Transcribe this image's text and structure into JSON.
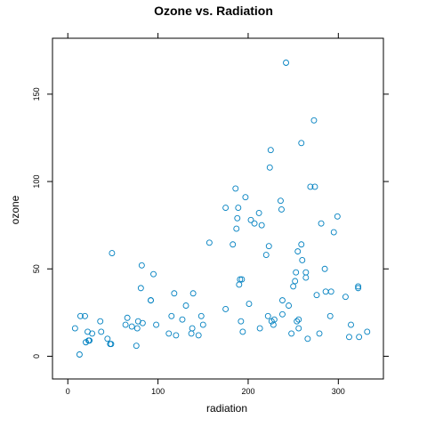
{
  "chart_data": {
    "type": "scatter",
    "title": "Ozone vs. Radiation",
    "xlabel": "radiation",
    "ylabel": "ozone",
    "xlim": [
      -17,
      350
    ],
    "ylim": [
      -13,
      182
    ],
    "xticks": [
      0,
      100,
      200,
      300
    ],
    "yticks": [
      0,
      50,
      100,
      150
    ],
    "grid": false,
    "point_color": "#0080c0",
    "x": [
      8,
      13,
      14,
      19,
      20,
      22,
      23,
      24,
      27,
      36,
      37,
      44,
      47,
      48,
      49,
      64,
      66,
      71,
      76,
      77,
      78,
      81,
      82,
      83,
      92,
      92,
      95,
      98,
      112,
      115,
      118,
      120,
      127,
      131,
      137,
      138,
      139,
      145,
      148,
      150,
      157,
      175,
      175,
      183,
      186,
      187,
      188,
      189,
      190,
      191,
      192,
      193,
      194,
      197,
      201,
      203,
      207,
      212,
      213,
      215,
      220,
      222,
      223,
      224,
      225,
      226,
      228,
      229,
      236,
      237,
      238,
      238,
      242,
      245,
      248,
      250,
      252,
      253,
      254,
      255,
      256,
      256,
      259,
      259,
      260,
      264,
      264,
      266,
      269,
      273,
      274,
      276,
      279,
      281,
      285,
      286,
      291,
      292,
      295,
      299,
      308,
      312,
      314,
      322,
      322,
      323,
      332
    ],
    "y": [
      16,
      1,
      23,
      23,
      8,
      14,
      9,
      9,
      13,
      20,
      14,
      10,
      7,
      7,
      59,
      18,
      22,
      17,
      6,
      16,
      20,
      39,
      52,
      19,
      32,
      32,
      47,
      18,
      13,
      23,
      36,
      12,
      21,
      29,
      13,
      16,
      36,
      12,
      23,
      18,
      65,
      27,
      85,
      64,
      96,
      73,
      79,
      85,
      41,
      44,
      20,
      44,
      14,
      91,
      30,
      78,
      76,
      82,
      16,
      75,
      58,
      23,
      63,
      108,
      118,
      20,
      18,
      21,
      89,
      84,
      32,
      24,
      168,
      29,
      13,
      40,
      43,
      48,
      20,
      60,
      21,
      16,
      122,
      64,
      55,
      45,
      48,
      10,
      97,
      135,
      97,
      35,
      13,
      76,
      50,
      37,
      23,
      37,
      71,
      80,
      34,
      11,
      18,
      40,
      39,
      11,
      14
    ],
    "x_real": [
      8,
      13,
      14,
      19,
      20,
      22,
      23,
      24,
      27,
      36,
      37,
      44,
      47,
      48,
      49,
      64,
      66,
      71,
      76,
      77,
      78,
      81,
      82,
      83,
      92,
      92,
      95,
      98,
      112,
      115,
      118,
      120,
      127,
      131,
      137,
      138,
      139,
      145,
      148,
      150,
      157,
      175,
      175,
      183,
      186,
      187,
      188,
      189,
      190,
      191,
      192,
      193,
      194,
      197,
      201,
      203,
      207,
      212,
      213,
      215,
      220,
      222,
      223,
      224,
      225,
      226,
      228,
      229,
      236,
      237,
      238,
      238,
      242,
      245,
      248,
      250,
      252,
      253,
      254,
      255,
      256,
      256,
      259,
      259,
      260,
      264,
      264,
      266,
      269,
      273,
      274,
      276,
      279,
      281,
      285,
      286,
      291,
      292,
      295,
      299,
      308,
      312,
      314,
      322,
      322,
      323,
      332
    ]
  }
}
